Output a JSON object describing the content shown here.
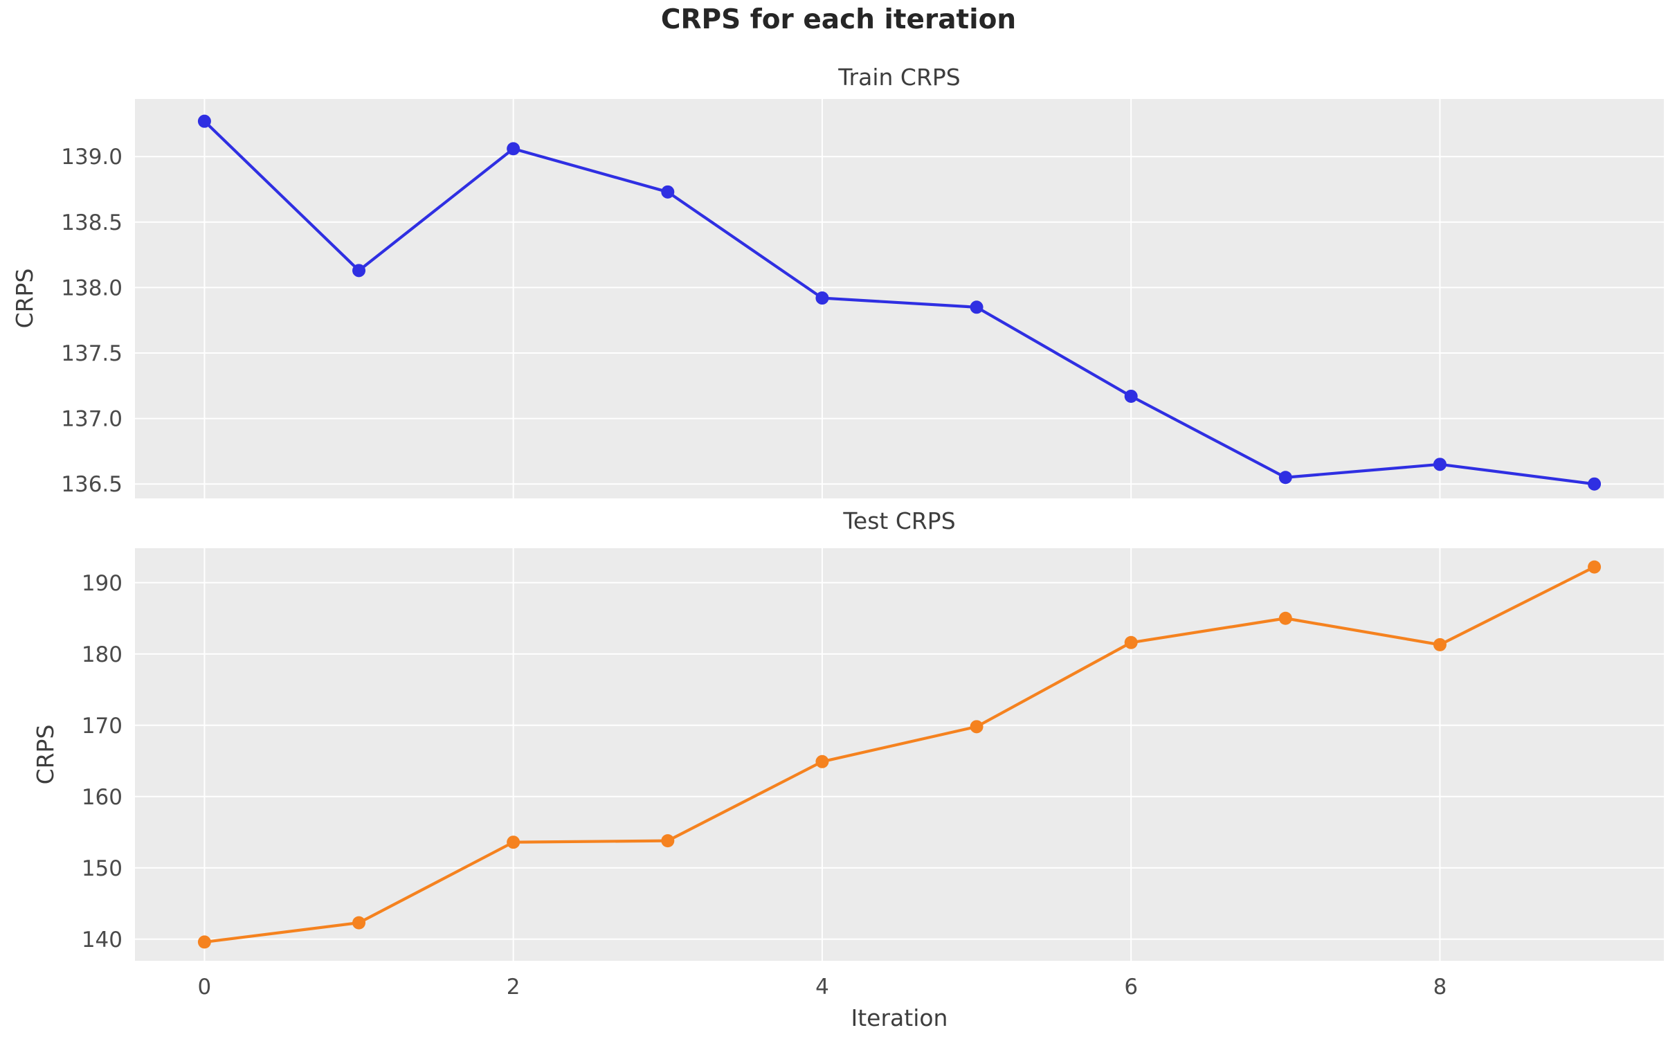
{
  "figure": {
    "title": "CRPS for each iteration",
    "background_color": "#ffffff",
    "axes_background_color": "#ebebeb",
    "gridline_color": "#ffffff",
    "title_color": "#262626",
    "label_color": "#3d3d3d",
    "tick_color": "#4a4a4a"
  },
  "chart_data": [
    {
      "type": "line",
      "title": "Train CRPS",
      "xlabel": "",
      "ylabel": "CRPS",
      "grid": true,
      "legend_position": "none",
      "marker": "circle",
      "series": [
        {
          "name": "Train CRPS",
          "color": "#2f2fe2",
          "x": [
            0,
            1,
            2,
            3,
            4,
            5,
            6,
            7,
            8,
            9
          ],
          "values": [
            139.27,
            138.13,
            139.06,
            138.73,
            137.92,
            137.85,
            137.17,
            136.55,
            136.65,
            136.5
          ]
        }
      ],
      "xlim": [
        -0.45,
        9.45
      ],
      "ylim": [
        136.39,
        139.44
      ],
      "xticks": [
        0,
        2,
        4,
        6,
        8
      ],
      "xtick_labels": [],
      "yticks": [
        136.5,
        137.0,
        137.5,
        138.0,
        138.5,
        139.0
      ],
      "ytick_labels": [
        "136.5",
        "137.0",
        "137.5",
        "138.0",
        "138.5",
        "139.0"
      ]
    },
    {
      "type": "line",
      "title": "Test CRPS",
      "xlabel": "Iteration",
      "ylabel": "CRPS",
      "grid": true,
      "legend_position": "none",
      "marker": "circle",
      "series": [
        {
          "name": "Test CRPS",
          "color": "#f5821f",
          "x": [
            0,
            1,
            2,
            3,
            4,
            5,
            6,
            7,
            8,
            9
          ],
          "values": [
            139.6,
            142.3,
            153.6,
            153.8,
            164.9,
            169.8,
            181.6,
            185.0,
            181.3,
            192.2
          ]
        }
      ],
      "xlim": [
        -0.45,
        9.45
      ],
      "ylim": [
        136.97,
        194.83
      ],
      "xticks": [
        0,
        2,
        4,
        6,
        8
      ],
      "xtick_labels": [
        "0",
        "2",
        "4",
        "6",
        "8"
      ],
      "yticks": [
        140,
        150,
        160,
        170,
        180,
        190
      ],
      "ytick_labels": [
        "140",
        "150",
        "160",
        "170",
        "180",
        "190"
      ]
    }
  ]
}
